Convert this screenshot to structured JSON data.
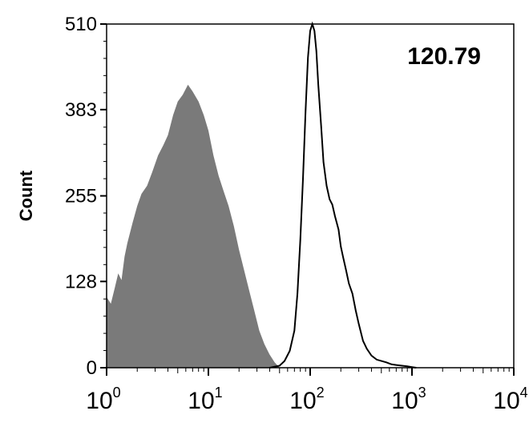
{
  "chart_data": {
    "type": "area",
    "title": "",
    "xlabel": "",
    "ylabel": "Count",
    "annotation": "120.79",
    "x_scale": "log",
    "xlim": [
      1,
      10000
    ],
    "ylim": [
      0,
      510
    ],
    "y_ticks": [
      "0",
      "128",
      "255",
      "383",
      "510"
    ],
    "x_ticks": [
      {
        "base": "10",
        "exp": "0",
        "value": 1
      },
      {
        "base": "10",
        "exp": "1",
        "value": 10
      },
      {
        "base": "10",
        "exp": "2",
        "value": 100
      },
      {
        "base": "10",
        "exp": "3",
        "value": 1000
      },
      {
        "base": "10",
        "exp": "4",
        "value": 10000
      }
    ],
    "series": [
      {
        "style": "filled",
        "color": "#7a7a7a",
        "x": [
          1.0,
          1.1,
          1.2,
          1.3,
          1.4,
          1.5,
          1.6,
          1.8,
          2.0,
          2.2,
          2.5,
          2.8,
          3.2,
          3.6,
          4.0,
          4.5,
          5.0,
          5.6,
          6.3,
          7.0,
          8.0,
          9.0,
          10.0,
          11.2,
          12.6,
          14.1,
          15.8,
          17.8,
          20.0,
          22.4,
          25.1,
          28.2,
          31.6,
          35.5,
          39.8,
          44.7,
          50.1
        ],
        "y": [
          105,
          95,
          118,
          140,
          130,
          165,
          185,
          215,
          240,
          258,
          270,
          290,
          315,
          330,
          345,
          375,
          395,
          405,
          420,
          410,
          395,
          375,
          352,
          315,
          285,
          262,
          240,
          210,
          175,
          145,
          115,
          85,
          55,
          35,
          20,
          8,
          0
        ]
      },
      {
        "style": "outline",
        "color": "#000000",
        "x": [
          40,
          50,
          56,
          63,
          70,
          75,
          80,
          85,
          90,
          95,
          100,
          105,
          110,
          115,
          120,
          128,
          135,
          145,
          155,
          165,
          175,
          190,
          200,
          210,
          225,
          240,
          260,
          280,
          300,
          330,
          360,
          400,
          450,
          500,
          560,
          630,
          700,
          800,
          900,
          1000,
          1100
        ],
        "y": [
          0,
          3,
          10,
          25,
          55,
          110,
          190,
          280,
          380,
          460,
          500,
          510,
          500,
          470,
          420,
          360,
          305,
          270,
          250,
          242,
          225,
          205,
          180,
          165,
          145,
          125,
          110,
          85,
          65,
          40,
          28,
          18,
          12,
          10,
          8,
          5,
          4,
          3,
          2,
          1,
          0
        ]
      }
    ]
  }
}
